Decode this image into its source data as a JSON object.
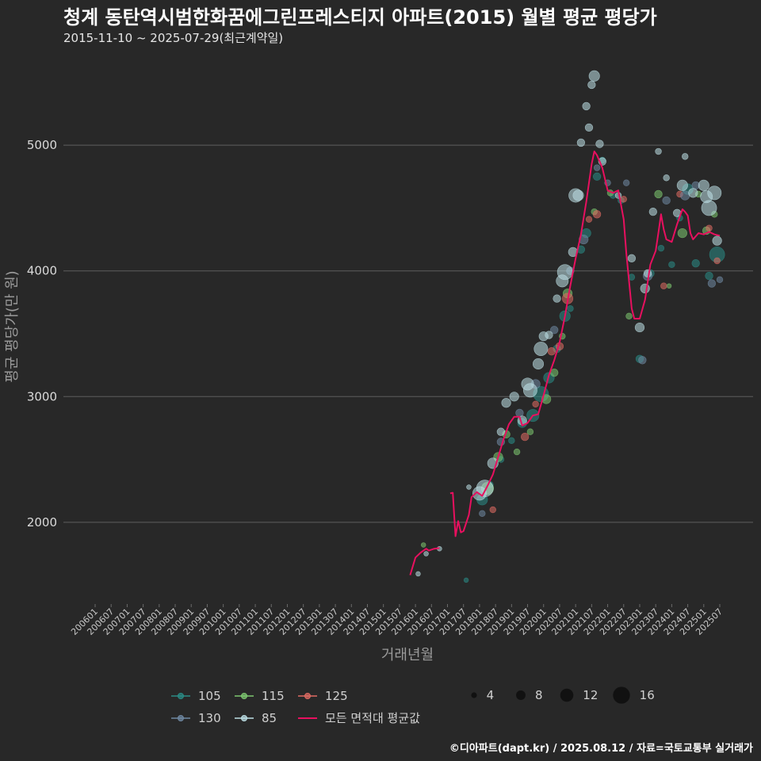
{
  "chart_data": {
    "type": "scatter",
    "title": "청계 동탄역시범한화꿈에그린프레스티지 아파트(2015) 월별 평균 평당가",
    "subtitle": "2015-11-10 ~ 2025-07-29(최근계약일)",
    "xlabel": "거래년월",
    "ylabel": "평균 평당가(만 원)",
    "caption": "©디아파트(dapt.kr) / 2025.08.12 / 자료=국토교통부 실거래가",
    "ylim": [
      1350,
      5650
    ],
    "yticks": [
      2000,
      3000,
      4000,
      5000
    ],
    "ytick_labels": [
      "2000",
      "3000",
      "4000",
      "5000"
    ],
    "x_range": [
      "2006-01",
      "2025-07"
    ],
    "x_tick_labels": [
      "200601",
      "200607",
      "200701",
      "200707",
      "200801",
      "200807",
      "200901",
      "200907",
      "201001",
      "201007",
      "201101",
      "201107",
      "201201",
      "201207",
      "201301",
      "201307",
      "201401",
      "201407",
      "201501",
      "201507",
      "201601",
      "201607",
      "201701",
      "201707",
      "201801",
      "201807",
      "201901",
      "201907",
      "202001",
      "202007",
      "202101",
      "202107",
      "202201",
      "202207",
      "202301",
      "202307",
      "202401",
      "202407",
      "202501",
      "202507"
    ],
    "grid": "horizontal",
    "legend_position": "bottom",
    "series": [
      {
        "name": "105",
        "color": "#2a8c86",
        "points": [
          [
            "2017-08",
            1540,
            1
          ],
          [
            "2018-02",
            2180,
            5
          ],
          [
            "2018-05",
            2300,
            2
          ],
          [
            "2018-09",
            2500,
            2
          ],
          [
            "2019-01",
            2650,
            2
          ],
          [
            "2019-05",
            2790,
            4
          ],
          [
            "2019-09",
            2850,
            6
          ],
          [
            "2019-12",
            3020,
            8
          ],
          [
            "2020-03",
            3150,
            5
          ],
          [
            "2020-06",
            3380,
            3
          ],
          [
            "2020-09",
            3640,
            5
          ],
          [
            "2020-11",
            3700,
            2
          ],
          [
            "2021-03",
            4170,
            3
          ],
          [
            "2021-05",
            4300,
            4
          ],
          [
            "2021-09",
            4750,
            3
          ],
          [
            "2021-11",
            4880,
            2
          ],
          [
            "2022-03",
            4600,
            2
          ],
          [
            "2022-06",
            4560,
            2
          ],
          [
            "2022-10",
            3950,
            2
          ],
          [
            "2023-01",
            3300,
            3
          ],
          [
            "2023-05",
            3980,
            3
          ],
          [
            "2023-09",
            4180,
            2
          ],
          [
            "2024-01",
            4050,
            2
          ],
          [
            "2024-04",
            4420,
            2
          ],
          [
            "2024-07",
            4650,
            5
          ],
          [
            "2024-10",
            4060,
            3
          ],
          [
            "2025-03",
            3960,
            3
          ],
          [
            "2025-06",
            4130,
            8
          ]
        ]
      },
      {
        "name": "115",
        "color": "#7ec870",
        "points": [
          [
            "2016-04",
            1820,
            1
          ],
          [
            "2018-04",
            2270,
            6
          ],
          [
            "2018-08",
            2520,
            4
          ],
          [
            "2018-11",
            2700,
            3
          ],
          [
            "2019-03",
            2560,
            2
          ],
          [
            "2019-08",
            2720,
            2
          ],
          [
            "2020-02",
            2980,
            4
          ],
          [
            "2020-05",
            3190,
            3
          ],
          [
            "2020-08",
            3480,
            2
          ],
          [
            "2020-10",
            3820,
            4
          ],
          [
            "2021-08",
            4470,
            2
          ],
          [
            "2022-02",
            4620,
            2
          ],
          [
            "2022-09",
            3640,
            2
          ],
          [
            "2023-08",
            4610,
            3
          ],
          [
            "2023-12",
            3880,
            1
          ],
          [
            "2024-05",
            4300,
            4
          ],
          [
            "2024-11",
            4610,
            2
          ],
          [
            "2025-02",
            4320,
            3
          ],
          [
            "2025-05",
            4450,
            2
          ]
        ]
      },
      {
        "name": "125",
        "color": "#e06b62",
        "points": [
          [
            "2018-06",
            2100,
            2
          ],
          [
            "2019-06",
            2680,
            3
          ],
          [
            "2019-10",
            2940,
            2
          ],
          [
            "2020-04",
            3360,
            3
          ],
          [
            "2020-07",
            3400,
            3
          ],
          [
            "2020-10",
            3780,
            5
          ],
          [
            "2021-06",
            4410,
            2
          ],
          [
            "2021-09",
            4450,
            3
          ],
          [
            "2022-07",
            4570,
            2
          ],
          [
            "2023-10",
            3880,
            2
          ],
          [
            "2024-04",
            4610,
            2
          ],
          [
            "2025-03",
            4340,
            2
          ],
          [
            "2025-06",
            4080,
            2
          ]
        ]
      },
      {
        "name": "130",
        "color": "#6f89a3",
        "points": [
          [
            "2018-02",
            2070,
            2
          ],
          [
            "2018-09",
            2640,
            3
          ],
          [
            "2019-04",
            2870,
            3
          ],
          [
            "2019-10",
            3100,
            4
          ],
          [
            "2020-05",
            3530,
            3
          ],
          [
            "2020-11",
            4000,
            3
          ],
          [
            "2021-04",
            4250,
            4
          ],
          [
            "2021-09",
            4820,
            2
          ],
          [
            "2022-01",
            4700,
            2
          ],
          [
            "2022-08",
            4700,
            2
          ],
          [
            "2023-02",
            3290,
            3
          ],
          [
            "2023-04",
            3960,
            4
          ],
          [
            "2023-11",
            4560,
            3
          ],
          [
            "2024-06",
            4600,
            4
          ],
          [
            "2024-10",
            4680,
            3
          ],
          [
            "2025-04",
            3900,
            3
          ],
          [
            "2025-07",
            3930,
            2
          ]
        ]
      },
      {
        "name": "85",
        "color": "#bde0e6",
        "points": [
          [
            "2016-02",
            1590,
            1
          ],
          [
            "2016-05",
            1750,
            1
          ],
          [
            "2016-10",
            1790,
            1
          ],
          [
            "2017-09",
            2280,
            1
          ],
          [
            "2018-01",
            2230,
            7
          ],
          [
            "2018-03",
            2270,
            9
          ],
          [
            "2018-06",
            2470,
            5
          ],
          [
            "2018-09",
            2720,
            3
          ],
          [
            "2018-11",
            2950,
            4
          ],
          [
            "2019-02",
            3000,
            4
          ],
          [
            "2019-05",
            2810,
            4
          ],
          [
            "2019-07",
            3100,
            6
          ],
          [
            "2019-08",
            3050,
            7
          ],
          [
            "2019-11",
            3260,
            5
          ],
          [
            "2019-12",
            3380,
            7
          ],
          [
            "2020-01",
            3480,
            4
          ],
          [
            "2020-03",
            3490,
            3
          ],
          [
            "2020-06",
            3780,
            3
          ],
          [
            "2020-08",
            3920,
            6
          ],
          [
            "2020-09",
            3990,
            8
          ],
          [
            "2020-12",
            4150,
            4
          ],
          [
            "2021-01",
            4600,
            7
          ],
          [
            "2021-02",
            4600,
            5
          ],
          [
            "2021-03",
            5020,
            3
          ],
          [
            "2021-05",
            5310,
            3
          ],
          [
            "2021-06",
            5140,
            3
          ],
          [
            "2021-07",
            5480,
            3
          ],
          [
            "2021-08",
            5550,
            5
          ],
          [
            "2021-10",
            5010,
            3
          ],
          [
            "2021-11",
            4870,
            3
          ],
          [
            "2022-05",
            4600,
            2
          ],
          [
            "2022-10",
            4100,
            3
          ],
          [
            "2023-01",
            3550,
            4
          ],
          [
            "2023-03",
            3860,
            4
          ],
          [
            "2023-04",
            3980,
            3
          ],
          [
            "2023-06",
            4470,
            3
          ],
          [
            "2023-08",
            4950,
            2
          ],
          [
            "2023-11",
            4740,
            2
          ],
          [
            "2024-03",
            4460,
            3
          ],
          [
            "2024-05",
            4680,
            5
          ],
          [
            "2024-06",
            4910,
            2
          ],
          [
            "2024-09",
            4620,
            4
          ],
          [
            "2025-01",
            4680,
            5
          ],
          [
            "2025-02",
            4590,
            6
          ],
          [
            "2025-03",
            4500,
            8
          ],
          [
            "2025-05",
            4620,
            7
          ],
          [
            "2025-06",
            4240,
            4
          ]
        ]
      }
    ],
    "average_line": {
      "name": "모든 면적대 평균값",
      "color": "#e8105f",
      "segments": [
        [
          [
            "2015-11",
            1580
          ],
          [
            "2016-01",
            1720
          ],
          [
            "2016-03",
            1760
          ],
          [
            "2016-05",
            1790
          ],
          [
            "2016-06",
            1775
          ],
          [
            "2016-08",
            1790
          ],
          [
            "2016-10",
            1795
          ]
        ],
        [
          [
            "2017-02",
            2230
          ],
          [
            "2017-03",
            2235
          ],
          [
            "2017-04",
            1890
          ],
          [
            "2017-05",
            2010
          ],
          [
            "2017-06",
            1920
          ],
          [
            "2017-07",
            1930
          ],
          [
            "2017-09",
            2060
          ],
          [
            "2017-10",
            2200
          ],
          [
            "2017-12",
            2240
          ],
          [
            "2018-02",
            2210
          ],
          [
            "2018-04",
            2290
          ],
          [
            "2018-06",
            2380
          ],
          [
            "2018-08",
            2520
          ],
          [
            "2018-10",
            2660
          ],
          [
            "2018-12",
            2780
          ],
          [
            "2019-02",
            2840
          ],
          [
            "2019-04",
            2840
          ],
          [
            "2019-05",
            2770
          ],
          [
            "2019-07",
            2790
          ],
          [
            "2019-09",
            2850
          ],
          [
            "2019-11",
            2860
          ],
          [
            "2020-01",
            3010
          ],
          [
            "2020-03",
            3170
          ],
          [
            "2020-05",
            3290
          ],
          [
            "2020-07",
            3430
          ],
          [
            "2020-09",
            3640
          ],
          [
            "2020-11",
            3880
          ],
          [
            "2021-01",
            4100
          ],
          [
            "2021-03",
            4290
          ],
          [
            "2021-05",
            4550
          ],
          [
            "2021-07",
            4850
          ],
          [
            "2021-08",
            4950
          ],
          [
            "2021-09",
            4920
          ],
          [
            "2021-11",
            4820
          ],
          [
            "2022-01",
            4640
          ],
          [
            "2022-03",
            4620
          ],
          [
            "2022-05",
            4640
          ],
          [
            "2022-07",
            4410
          ],
          [
            "2022-08",
            4140
          ],
          [
            "2022-10",
            3700
          ],
          [
            "2022-11",
            3620
          ],
          [
            "2023-01",
            3620
          ],
          [
            "2023-03",
            3770
          ],
          [
            "2023-05",
            4050
          ],
          [
            "2023-07",
            4160
          ],
          [
            "2023-08",
            4300
          ],
          [
            "2023-09",
            4450
          ],
          [
            "2023-10",
            4330
          ],
          [
            "2023-11",
            4250
          ],
          [
            "2024-01",
            4230
          ],
          [
            "2024-03",
            4370
          ],
          [
            "2024-05",
            4490
          ],
          [
            "2024-06",
            4470
          ],
          [
            "2024-07",
            4440
          ],
          [
            "2024-08",
            4300
          ],
          [
            "2024-09",
            4250
          ],
          [
            "2024-11",
            4300
          ],
          [
            "2025-01",
            4290
          ],
          [
            "2025-03",
            4310
          ],
          [
            "2025-05",
            4290
          ],
          [
            "2025-07",
            4280
          ]
        ]
      ]
    },
    "size_legend": {
      "values": [
        4,
        8,
        12,
        16
      ]
    }
  }
}
